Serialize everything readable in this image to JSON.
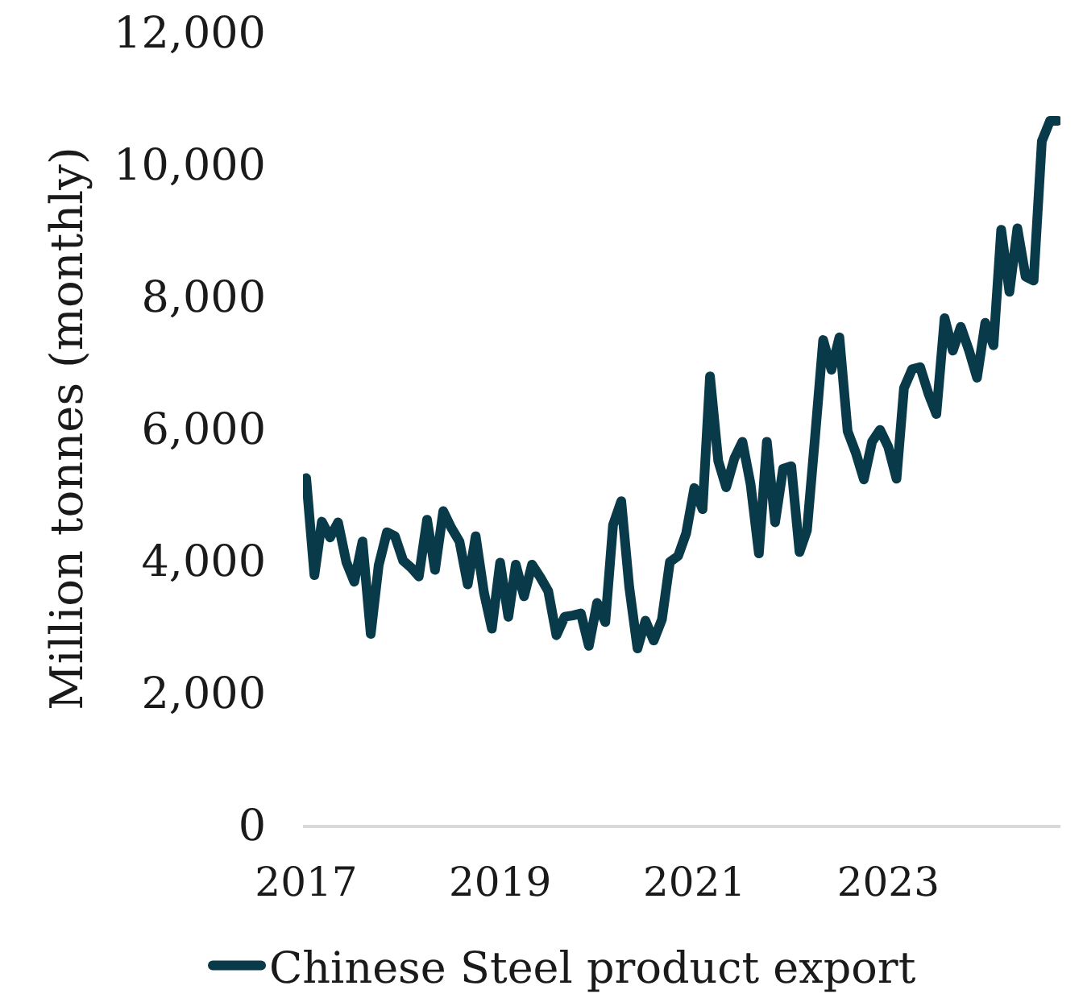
{
  "chart_data": {
    "type": "line",
    "ylabel": "Million tonnes (monthly)",
    "x": [
      "2017-01",
      "2017-02",
      "2017-03",
      "2017-04",
      "2017-05",
      "2017-06",
      "2017-07",
      "2017-08",
      "2017-09",
      "2017-10",
      "2017-11",
      "2017-12",
      "2018-01",
      "2018-02",
      "2018-03",
      "2018-04",
      "2018-05",
      "2018-06",
      "2018-07",
      "2018-08",
      "2018-09",
      "2018-10",
      "2018-11",
      "2018-12",
      "2019-01",
      "2019-02",
      "2019-03",
      "2019-04",
      "2019-05",
      "2019-06",
      "2019-07",
      "2019-08",
      "2019-09",
      "2019-10",
      "2019-11",
      "2019-12",
      "2020-01",
      "2020-02",
      "2020-03",
      "2020-04",
      "2020-05",
      "2020-06",
      "2020-07",
      "2020-08",
      "2020-09",
      "2020-10",
      "2020-11",
      "2020-12",
      "2021-01",
      "2021-02",
      "2021-03",
      "2021-04",
      "2021-05",
      "2021-06",
      "2021-07",
      "2021-08",
      "2021-09",
      "2021-10",
      "2021-11",
      "2021-12",
      "2022-01",
      "2022-02",
      "2022-03",
      "2022-04",
      "2022-05",
      "2022-06",
      "2022-07",
      "2022-08",
      "2022-09",
      "2022-10",
      "2022-11",
      "2022-12",
      "2023-01",
      "2023-02",
      "2023-03",
      "2023-04",
      "2023-05",
      "2023-06",
      "2023-07",
      "2023-08",
      "2023-09",
      "2023-10",
      "2023-11",
      "2023-12",
      "2024-01",
      "2024-02",
      "2024-03",
      "2024-04",
      "2024-05",
      "2024-06",
      "2024-07",
      "2024-08",
      "2024-09",
      "2024-10"
    ],
    "xlim": [
      "2016-12-20",
      "2024-10-10"
    ],
    "xticks": [
      "2017",
      "2019",
      "2021",
      "2023"
    ],
    "ylim": [
      0,
      12000
    ],
    "yticks": [
      0,
      {
        "value": 2000,
        "label": "2,000"
      },
      {
        "value": 4000,
        "label": "4,000"
      },
      {
        "value": 6000,
        "label": "6,000"
      },
      {
        "value": 8000,
        "label": "8,000"
      },
      {
        "value": 10000,
        "label": "10,000"
      },
      {
        "value": 12000,
        "label": "12,000"
      }
    ],
    "series": [
      {
        "name": "Chinese Steel product export",
        "color": "#083a4a",
        "values": [
          5250,
          3780,
          4590,
          4350,
          4580,
          3980,
          3680,
          4290,
          2890,
          3930,
          4430,
          4370,
          4000,
          3890,
          3760,
          4620,
          3860,
          4750,
          4500,
          4290,
          3640,
          4370,
          3520,
          2970,
          3970,
          3150,
          3940,
          3460,
          3940,
          3750,
          3540,
          2870,
          3150,
          3170,
          3200,
          2710,
          3360,
          3070,
          4540,
          4900,
          3600,
          2670,
          3090,
          2790,
          3110,
          3980,
          4070,
          4410,
          5100,
          4780,
          6790,
          5510,
          5110,
          5550,
          5800,
          5150,
          4110,
          5800,
          4580,
          5390,
          5430,
          4130,
          4460,
          5900,
          7340,
          6890,
          7380,
          5960,
          5630,
          5230,
          5800,
          5980,
          5720,
          5240,
          6610,
          6900,
          6930,
          6530,
          6220,
          7670,
          7180,
          7540,
          7180,
          6770,
          7600,
          7260,
          9010,
          8070,
          9030,
          8300,
          8240,
          10350,
          10660,
          10660
        ]
      }
    ],
    "legend": "bottom",
    "line_style": "solid"
  }
}
